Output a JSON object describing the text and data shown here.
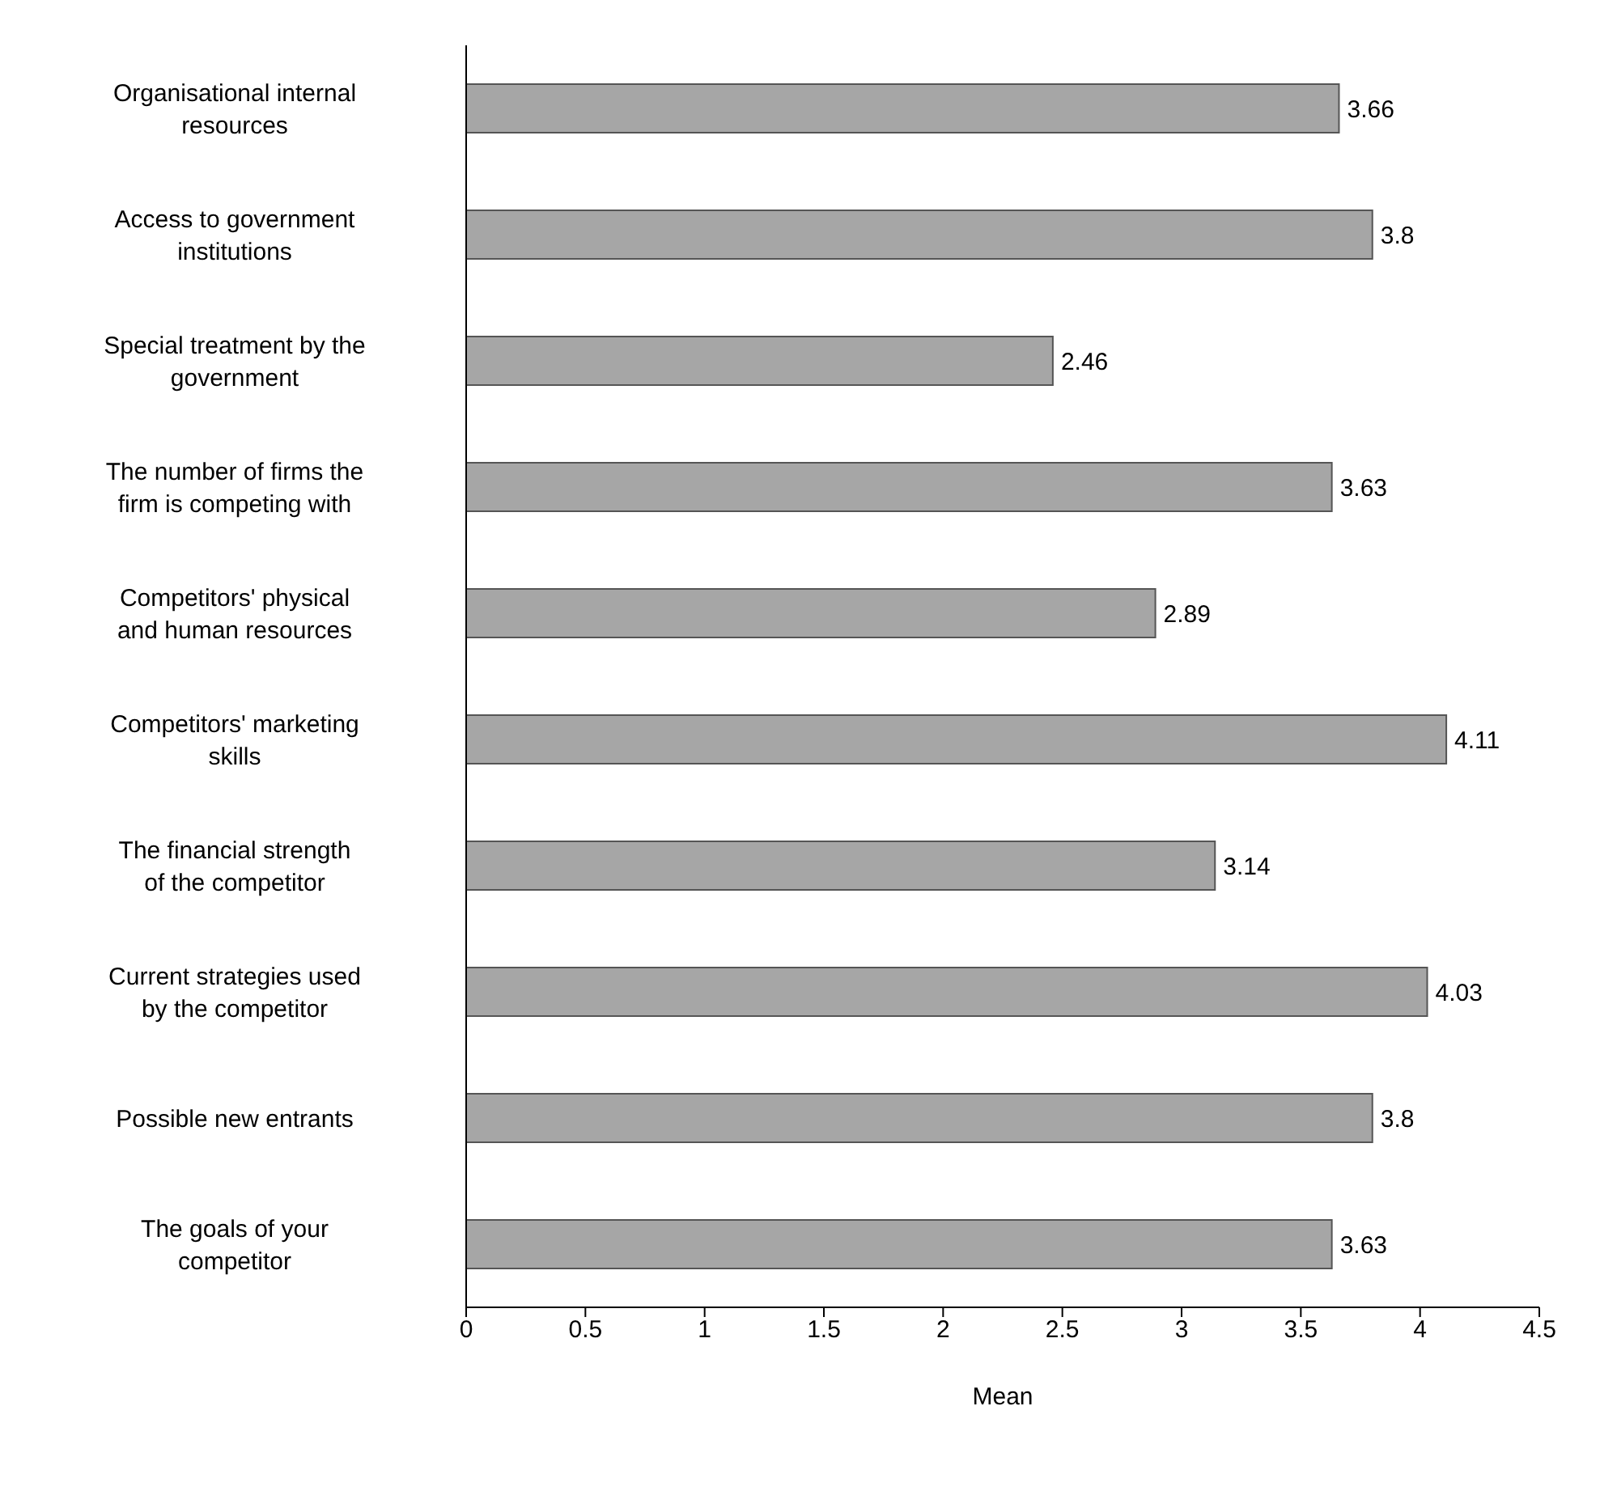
{
  "chart_data": {
    "type": "bar",
    "orientation": "horizontal",
    "xlabel": "Mean",
    "categories": [
      "Organisational internal resources",
      "Access to government institutions",
      "Special treatment by the government",
      "The number of firms the firm is competing with",
      "Competitors' physical and human resources",
      "Competitors' marketing skills",
      "The financial strength of the competitor",
      "Current strategies used by the competitor",
      "Possible new entrants",
      "The goals of your competitor"
    ],
    "values": [
      3.66,
      3.8,
      2.46,
      3.63,
      2.89,
      4.11,
      3.14,
      4.03,
      3.8,
      3.63
    ],
    "color": "#a6a6a6",
    "xlim": [
      0,
      4.5
    ],
    "xticks": [
      0,
      0.5,
      1,
      1.5,
      2,
      2.5,
      3,
      3.5,
      4,
      4.5
    ],
    "data_labels": true,
    "grid": false,
    "legend": false
  }
}
